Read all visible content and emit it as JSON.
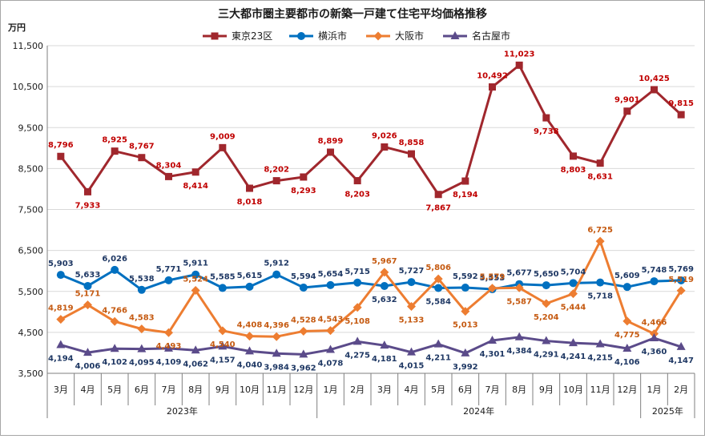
{
  "chart_data": {
    "type": "line",
    "title": "三大都市圏主要都市の新築一戸建て住宅平均価格推移",
    "ylabel": "万円",
    "ylim": [
      3500,
      11500
    ],
    "yticks": [
      "11,500",
      "10,500",
      "9,500",
      "8,500",
      "7,500",
      "6,500",
      "5,500",
      "4,500",
      "3,500"
    ],
    "ytick_values": [
      11500,
      10500,
      9500,
      8500,
      7500,
      6500,
      5500,
      4500,
      3500
    ],
    "grid": true,
    "legend_position": "top",
    "categories": [
      "3月",
      "4月",
      "5月",
      "6月",
      "7月",
      "8月",
      "9月",
      "10月",
      "11月",
      "12月",
      "1月",
      "2月",
      "3月",
      "4月",
      "5月",
      "6月",
      "7月",
      "8月",
      "9月",
      "10月",
      "11月",
      "12月",
      "1月",
      "2月"
    ],
    "year_groups": [
      {
        "label": "2023年",
        "start": 0,
        "end": 9
      },
      {
        "label": "2024年",
        "start": 10,
        "end": 21
      },
      {
        "label": "2025年",
        "start": 22,
        "end": 23
      }
    ],
    "series": [
      {
        "name": "東京23区",
        "color": "#a0272d",
        "label_color": "#c00000",
        "marker": "square",
        "values": [
          8796,
          7933,
          8925,
          8767,
          8304,
          8414,
          9009,
          8018,
          8202,
          8293,
          8899,
          8203,
          9026,
          8858,
          7867,
          8194,
          10492,
          11023,
          9738,
          8803,
          8631,
          9901,
          10425,
          9815
        ],
        "labels": [
          "8,796",
          "7,933",
          "8,925",
          "8,767",
          "8,304",
          "8,414",
          "9,009",
          "8,018",
          "8,202",
          "8,293",
          "8,899",
          "8,203",
          "9,026",
          "8,858",
          "7,867",
          "8,194",
          "10,492",
          "11,023",
          "9,738",
          "8,803",
          "8,631",
          "9,901",
          "10,425",
          "9,815"
        ],
        "label_pos": [
          "above",
          "below",
          "above",
          "above",
          "above",
          "below",
          "above",
          "below",
          "above",
          "below",
          "above",
          "below",
          "above",
          "above",
          "below",
          "below",
          "above",
          "above",
          "below",
          "below",
          "below",
          "above",
          "above",
          "above"
        ]
      },
      {
        "name": "横浜市",
        "color": "#0070c0",
        "label_color": "#1f3864",
        "marker": "circle",
        "values": [
          5903,
          5633,
          6026,
          5538,
          5771,
          5911,
          5585,
          5615,
          5912,
          5594,
          5654,
          5715,
          5632,
          5727,
          5584,
          5592,
          5553,
          5677,
          5650,
          5704,
          5718,
          5609,
          5748,
          5769
        ],
        "labels": [
          "5,903",
          "5,633",
          "6,026",
          "5,538",
          "5,771",
          "5,911",
          "5,585",
          "5,615",
          "5,912",
          "5,594",
          "5,654",
          "5,715",
          "5,632",
          "5,727",
          "5,584",
          "5,592",
          "5,553",
          "5,677",
          "5,650",
          "5,704",
          "5,718",
          "5,609",
          "5,748",
          "5,769"
        ],
        "label_pos": [
          "above",
          "above",
          "above",
          "above",
          "above",
          "above",
          "above",
          "above",
          "above",
          "above",
          "above",
          "above",
          "below",
          "above",
          "below",
          "above",
          "above",
          "above",
          "above",
          "above",
          "below",
          "above",
          "above",
          "above"
        ]
      },
      {
        "name": "大阪市",
        "color": "#ed7d31",
        "label_color": "#c55a11",
        "marker": "diamond",
        "values": [
          4819,
          5171,
          4766,
          4583,
          4493,
          5524,
          4540,
          4408,
          4396,
          4528,
          4543,
          5108,
          5967,
          5133,
          5806,
          5013,
          5579,
          5587,
          5204,
          5444,
          6725,
          4775,
          4466,
          5519
        ],
        "labels": [
          "4,819",
          "5,171",
          "4,766",
          "4,583",
          "4,493",
          "5,524",
          "4,540",
          "4,408",
          "4,396",
          "4,528",
          "4,543",
          "5,108",
          "5,967",
          "5,133",
          "5,806",
          "5,013",
          "5,579",
          "5,587",
          "5,204",
          "5,444",
          "6,725",
          "4,775",
          "4,466",
          "5,519"
        ],
        "label_pos": [
          "above",
          "above",
          "above",
          "above",
          "below",
          "above",
          "below",
          "above",
          "above",
          "above",
          "above",
          "below",
          "above",
          "below",
          "above",
          "below",
          "above",
          "below",
          "below",
          "below",
          "above",
          "below",
          "above",
          "above"
        ]
      },
      {
        "name": "名古屋市",
        "color": "#5b4b8a",
        "label_color": "#1f3864",
        "marker": "triangle",
        "values": [
          4194,
          4006,
          4102,
          4095,
          4109,
          4062,
          4157,
          4040,
          3984,
          3962,
          4078,
          4275,
          4181,
          4015,
          4211,
          3992,
          4301,
          4384,
          4291,
          4241,
          4215,
          4106,
          4360,
          4147
        ],
        "labels": [
          "4,194",
          "4,006",
          "4,102",
          "4,095",
          "4,109",
          "4,062",
          "4,157",
          "4,040",
          "3,984",
          "3,962",
          "4,078",
          "4,275",
          "4,181",
          "4,015",
          "4,211",
          "3,992",
          "4,301",
          "4,384",
          "4,291",
          "4,241",
          "4,215",
          "4,106",
          "4,360",
          "4,147"
        ],
        "label_pos": [
          "below",
          "below",
          "below",
          "below",
          "below",
          "below",
          "below",
          "below",
          "below",
          "below",
          "below",
          "below",
          "below",
          "below",
          "below",
          "below",
          "below",
          "below",
          "below",
          "below",
          "below",
          "below",
          "below",
          "below"
        ]
      }
    ]
  }
}
